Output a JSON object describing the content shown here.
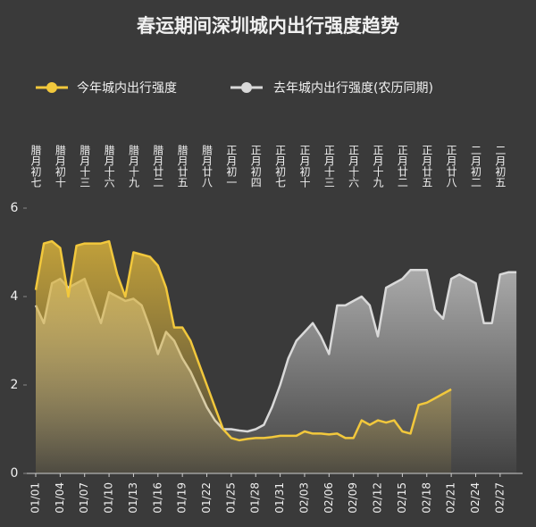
{
  "chart_data": {
    "type": "area",
    "title": "春运期间深圳城内出行强度趋势",
    "categories": [
      "01/01",
      null,
      null,
      "01/04",
      null,
      null,
      "01/07",
      null,
      null,
      "01/10",
      null,
      null,
      "01/13",
      null,
      null,
      "01/16",
      null,
      null,
      "01/19",
      null,
      null,
      "01/22",
      null,
      null,
      "01/25",
      null,
      null,
      "01/28",
      null,
      null,
      "01/31",
      null,
      null,
      "02/03",
      null,
      null,
      "02/06",
      null,
      null,
      "02/09",
      null,
      null,
      "02/12",
      null,
      null,
      "02/15",
      null,
      null,
      "02/18",
      null,
      null,
      "02/21",
      null,
      null,
      "02/24",
      null,
      null,
      "02/27",
      null,
      null
    ],
    "lunar_categories": [
      "腊月初七",
      null,
      null,
      "腊月初十",
      null,
      null,
      "腊月十三",
      null,
      null,
      "腊月十六",
      null,
      null,
      "腊月十九",
      null,
      null,
      "腊月廿二",
      null,
      null,
      "腊月廿五",
      null,
      null,
      "腊月廿八",
      null,
      null,
      "正月初一",
      null,
      null,
      "正月初四",
      null,
      null,
      "正月初七",
      null,
      null,
      "正月初十",
      null,
      null,
      "正月十三",
      null,
      null,
      "正月十六",
      null,
      null,
      "正月十九",
      null,
      null,
      "正月廿二",
      null,
      null,
      "正月廿五",
      null,
      null,
      "正月廿八",
      null,
      null,
      "二月初二",
      null,
      null,
      "二月初五",
      null,
      null
    ],
    "series": [
      {
        "name": "去年城内出行强度(农历同期)",
        "color": "#d9d9d9",
        "values": [
          3.8,
          3.4,
          4.3,
          4.4,
          4.2,
          4.3,
          4.4,
          3.9,
          3.4,
          4.1,
          4.0,
          3.9,
          3.95,
          3.8,
          3.3,
          2.7,
          3.2,
          3.0,
          2.6,
          2.3,
          1.9,
          1.5,
          1.2,
          1.0,
          1.0,
          0.97,
          0.95,
          1.0,
          1.1,
          1.5,
          2.0,
          2.6,
          3.0,
          3.2,
          3.4,
          3.1,
          2.7,
          3.8,
          3.8,
          3.9,
          4.0,
          3.8,
          3.1,
          4.2,
          4.3,
          4.4,
          4.6,
          4.6,
          4.6,
          3.7,
          3.5,
          4.4,
          4.5,
          4.4,
          4.3,
          3.4,
          3.4,
          4.5,
          4.55,
          4.55
        ]
      },
      {
        "name": "今年城内出行强度",
        "color": "#f2c83c",
        "values": [
          4.15,
          5.2,
          5.25,
          5.1,
          4.0,
          5.15,
          5.2,
          5.2,
          5.2,
          5.25,
          4.5,
          4.0,
          5.0,
          4.95,
          4.9,
          4.7,
          4.2,
          3.3,
          3.3,
          3.0,
          2.5,
          2.0,
          1.5,
          1.0,
          0.8,
          0.75,
          0.78,
          0.8,
          0.8,
          0.82,
          0.85,
          0.85,
          0.85,
          0.95,
          0.9,
          0.9,
          0.88,
          0.9,
          0.8,
          0.8,
          1.2,
          1.1,
          1.2,
          1.15,
          1.2,
          0.95,
          0.9,
          1.55,
          1.6,
          1.7,
          1.8,
          1.9,
          null,
          null,
          null,
          null,
          null,
          null,
          null,
          null
        ]
      }
    ],
    "ylim": [
      0,
      6
    ],
    "yticks": [
      0,
      2,
      4,
      6
    ]
  }
}
